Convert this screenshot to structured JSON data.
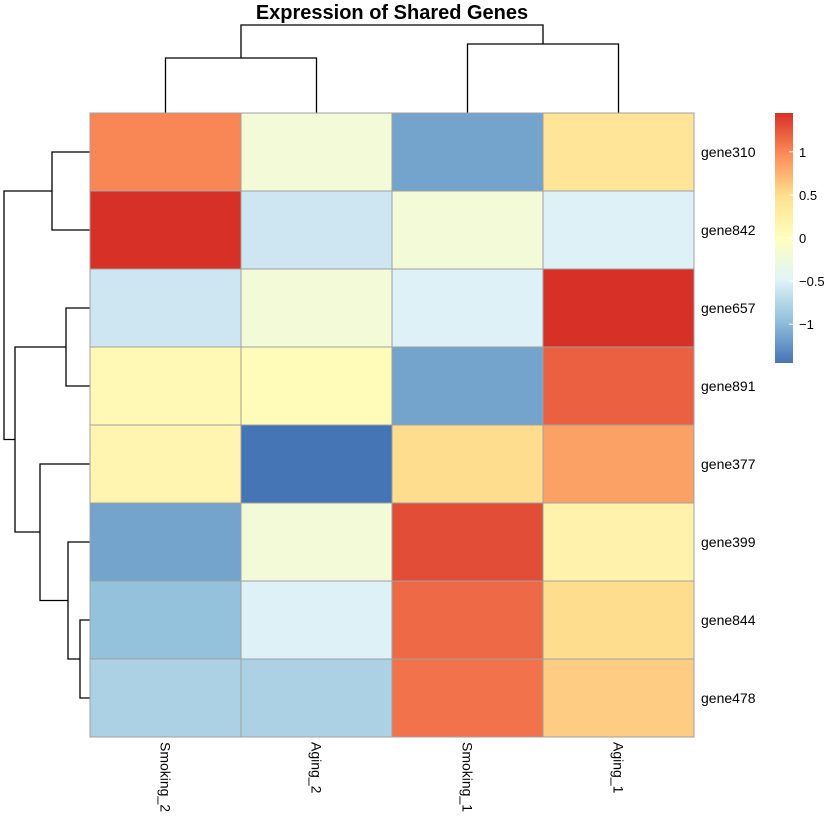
{
  "chart_data": {
    "type": "heatmap",
    "title": "Expression of Shared Genes",
    "columns": [
      "Smoking_2",
      "Aging_2",
      "Smoking_1",
      "Aging_1"
    ],
    "rows": [
      "gene310",
      "gene842",
      "gene657",
      "gene891",
      "gene377",
      "gene399",
      "gene844",
      "gene478"
    ],
    "values": [
      [
        1.0,
        -0.2,
        -1.15,
        0.4
      ],
      [
        1.45,
        -0.6,
        -0.2,
        -0.5
      ],
      [
        -0.6,
        -0.2,
        -0.5,
        1.45
      ],
      [
        0.1,
        0.05,
        -1.15,
        1.2
      ],
      [
        0.15,
        -1.45,
        0.5,
        0.85
      ],
      [
        -1.15,
        -0.2,
        1.3,
        0.2
      ],
      [
        -0.95,
        -0.5,
        1.15,
        0.5
      ],
      [
        -0.8,
        -0.8,
        1.1,
        0.6
      ]
    ],
    "color_scale": {
      "min": -1.45,
      "max": 1.45,
      "colors": [
        "#4575b4",
        "#91bfdb",
        "#e0f3f8",
        "#ffffbf",
        "#fee090",
        "#fc8d59",
        "#d73027"
      ],
      "ticks": [
        {
          "value": 1,
          "label": "1"
        },
        {
          "value": 0.5,
          "label": "0.5"
        },
        {
          "value": 0,
          "label": "0"
        },
        {
          "value": -0.5,
          "label": "−0.5"
        },
        {
          "value": -1,
          "label": "−1"
        }
      ]
    },
    "legend_placement": "right"
  }
}
